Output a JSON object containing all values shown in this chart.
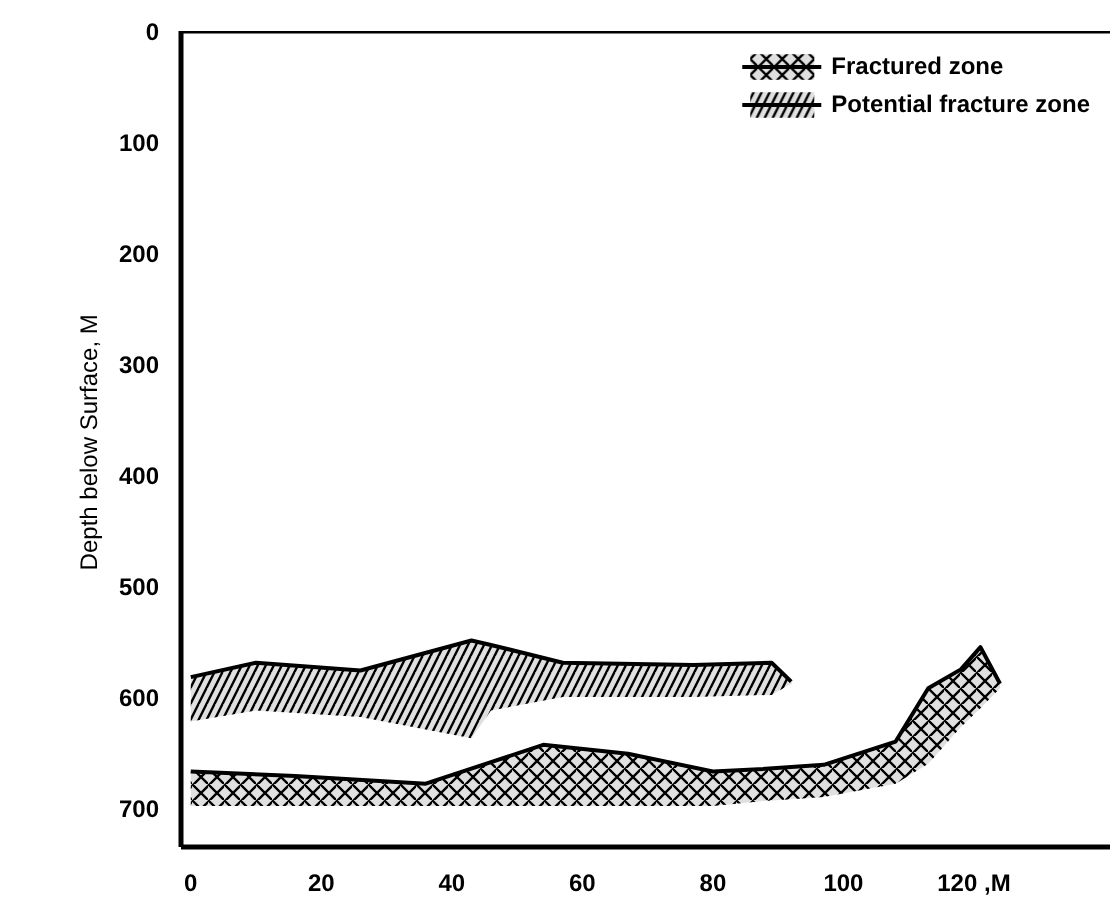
{
  "chart_data": {
    "type": "line",
    "ylabel": "Depth below Surface,  M",
    "xlim": [
      -1.5,
      141
    ],
    "ylim": [
      735,
      0
    ],
    "xticks": [
      0,
      20,
      40,
      60,
      80,
      100,
      {
        "value": 120,
        "label": "120 ,M"
      }
    ],
    "yticks": [
      0,
      100,
      200,
      300,
      400,
      500,
      600,
      700
    ],
    "legend": "top right",
    "grid": false,
    "series": [
      {
        "name": "Fractured zone",
        "color": "#000000",
        "x": [
          0,
          16,
          36,
          54,
          67,
          80,
          87,
          97,
          108,
          113,
          118,
          121,
          124
        ],
        "values": [
          667,
          671,
          678,
          643,
          651,
          667,
          665,
          661,
          640,
          592,
          575,
          555,
          588
        ],
        "upper": [
          667,
          671,
          678,
          643,
          651,
          667,
          665,
          661,
          640,
          592,
          575,
          555,
          588
        ],
        "lower": [
          698,
          698,
          698,
          698,
          698,
          698,
          694,
          690,
          678,
          660,
          627,
          610,
          592
        ]
      },
      {
        "name": "Potential fracture zone",
        "color": "#000000",
        "x": [
          0,
          10,
          26,
          43,
          46,
          57,
          77,
          89,
          92
        ],
        "values": [
          582,
          569,
          576,
          549,
          553,
          569,
          571,
          569,
          586
        ],
        "upper": [
          582,
          569,
          576,
          549,
          553,
          569,
          571,
          569,
          586
        ],
        "lower": [
          622,
          612,
          618,
          637,
          612,
          600,
          600,
          598,
          588
        ]
      }
    ]
  }
}
